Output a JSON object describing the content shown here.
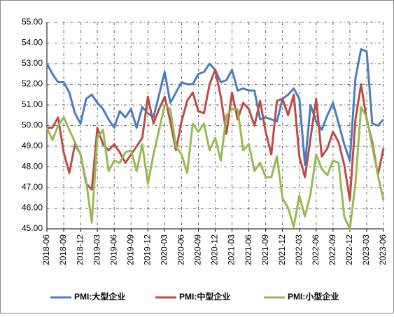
{
  "chart_data": {
    "type": "line",
    "categories": [
      "2018-06",
      null,
      null,
      "2018-09",
      null,
      null,
      "2018-12",
      null,
      null,
      "2019-03",
      null,
      null,
      "2019-06",
      null,
      null,
      "2019-09",
      null,
      null,
      "2019-12",
      null,
      null,
      "2020-03",
      null,
      null,
      "2020-06",
      null,
      null,
      "2020-09",
      null,
      null,
      "2020-12",
      null,
      null,
      "2021-03",
      null,
      null,
      "2021-06",
      null,
      null,
      "2021-09",
      null,
      null,
      "2021-12",
      null,
      null,
      "2022-03",
      null,
      null,
      "2022-06",
      null,
      null,
      "2022-09",
      null,
      null,
      "2022-12",
      null,
      null,
      "2023-03",
      null,
      null,
      "2023-06"
    ],
    "series": [
      {
        "name": "PMI:大型企业",
        "color": "#4a7ebb",
        "values": [
          53.0,
          52.5,
          52.1,
          52.1,
          51.6,
          50.6,
          50.1,
          51.3,
          51.5,
          51.1,
          50.8,
          50.3,
          49.9,
          50.7,
          50.4,
          50.8,
          49.9,
          50.9,
          50.6,
          50.4,
          51.5,
          52.6,
          51.1,
          51.6,
          52.1,
          52.0,
          52.0,
          52.5,
          52.6,
          53.0,
          52.7,
          52.1,
          52.2,
          52.7,
          51.7,
          51.8,
          51.7,
          51.7,
          50.3,
          50.4,
          50.3,
          50.2,
          51.3,
          51.5,
          51.8,
          51.3,
          48.1,
          51.0,
          50.2,
          49.8,
          50.5,
          51.1,
          50.1,
          49.1,
          48.3,
          52.3,
          53.7,
          53.6,
          50.1,
          50.0,
          50.3
        ]
      },
      {
        "name": "PMI:中型企业",
        "color": "#be4b48",
        "values": [
          49.9,
          49.9,
          50.4,
          48.7,
          47.7,
          49.1,
          48.6,
          47.2,
          46.9,
          49.9,
          49.1,
          48.8,
          49.1,
          48.7,
          48.2,
          48.6,
          49.0,
          49.4,
          51.4,
          50.1,
          50.8,
          51.4,
          50.2,
          48.8,
          50.2,
          51.2,
          51.6,
          50.7,
          50.6,
          52.0,
          52.7,
          51.4,
          49.6,
          51.6,
          50.3,
          51.1,
          50.8,
          50.0,
          51.2,
          49.7,
          48.6,
          51.2,
          51.3,
          50.5,
          51.5,
          48.5,
          47.5,
          49.4,
          51.3,
          48.5,
          48.9,
          49.7,
          49.2,
          48.1,
          46.4,
          50.3,
          52.0,
          50.3,
          49.2,
          47.6,
          48.9
        ]
      },
      {
        "name": "PMI:小型企业",
        "color": "#98b954",
        "values": [
          49.9,
          49.3,
          50.0,
          50.4,
          49.8,
          49.2,
          48.6,
          47.3,
          45.3,
          49.4,
          49.8,
          47.8,
          48.3,
          48.2,
          48.7,
          48.8,
          47.8,
          49.1,
          47.2,
          48.6,
          49.8,
          51.0,
          50.8,
          49.0,
          48.6,
          47.7,
          50.1,
          49.7,
          50.1,
          48.8,
          49.4,
          48.3,
          50.5,
          50.8,
          50.8,
          48.8,
          49.1,
          47.8,
          48.2,
          47.5,
          47.5,
          48.5,
          46.5,
          46.0,
          45.1,
          46.6,
          45.6,
          46.7,
          48.6,
          47.9,
          47.6,
          48.3,
          48.2,
          45.6,
          45.0,
          47.2,
          50.9,
          50.4,
          49.0,
          47.6,
          46.4
        ]
      }
    ],
    "ylim": [
      45,
      55
    ],
    "yticks": [
      {
        "value": 45,
        "label": "45.00"
      },
      {
        "value": 46,
        "label": "46.00"
      },
      {
        "value": 47,
        "label": "47.00"
      },
      {
        "value": 48,
        "label": "48.00"
      },
      {
        "value": 49,
        "label": "49.00"
      },
      {
        "value": 50,
        "label": "50.00"
      },
      {
        "value": 51,
        "label": "51.00"
      },
      {
        "value": 52,
        "label": "52.00"
      },
      {
        "value": 53,
        "label": "53.00"
      },
      {
        "value": 54,
        "label": "54.00"
      },
      {
        "value": 55,
        "label": "55.00"
      }
    ],
    "grid": true,
    "legend": "bottom"
  }
}
